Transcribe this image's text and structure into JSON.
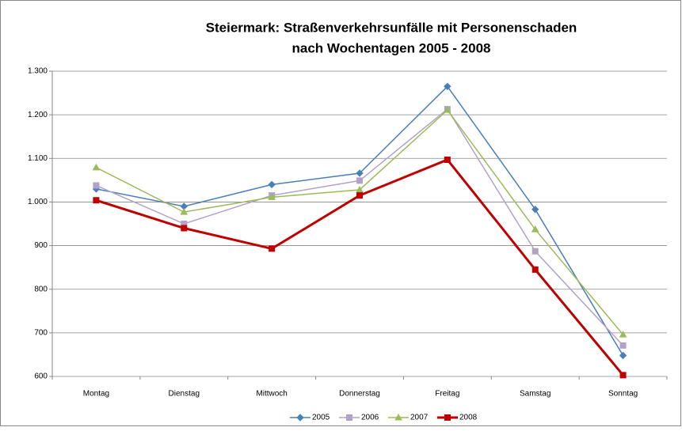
{
  "chart_data": {
    "type": "line",
    "title": [
      "Steiermark: Straßenverkehrsunfälle mit Personenschaden",
      "nach Wochentagen 2005 - 2008"
    ],
    "categories": [
      "Montag",
      "Dienstag",
      "Mittwoch",
      "Donnerstag",
      "Freitag",
      "Samstag",
      "Sonntag"
    ],
    "series": [
      {
        "name": "2005",
        "color": "#4a7ebb",
        "marker": "diamond",
        "width": 1.5,
        "values": [
          1030,
          990,
          1040,
          1066,
          1265,
          983,
          648
        ]
      },
      {
        "name": "2006",
        "color": "#b3a2c7",
        "marker": "square",
        "width": 1.5,
        "values": [
          1038,
          950,
          1015,
          1049,
          1213,
          887,
          671
        ]
      },
      {
        "name": "2007",
        "color": "#9bbb59",
        "marker": "triangle",
        "width": 1.5,
        "values": [
          1079,
          977,
          1011,
          1028,
          1211,
          937,
          696
        ]
      },
      {
        "name": "2008",
        "color": "#c00000",
        "marker": "square",
        "width": 3,
        "values": [
          1004,
          940,
          893,
          1015,
          1097,
          845,
          603
        ]
      }
    ],
    "ylim": [
      600,
      1300
    ],
    "yticks": [
      600,
      700,
      800,
      900,
      {
        "value": 1000,
        "label": "1.000"
      },
      {
        "value": 1100,
        "label": "1.100"
      },
      {
        "value": 1200,
        "label": "1.200"
      },
      {
        "value": 1300,
        "label": "1.300"
      }
    ],
    "grid": true,
    "legend": "bottom"
  }
}
